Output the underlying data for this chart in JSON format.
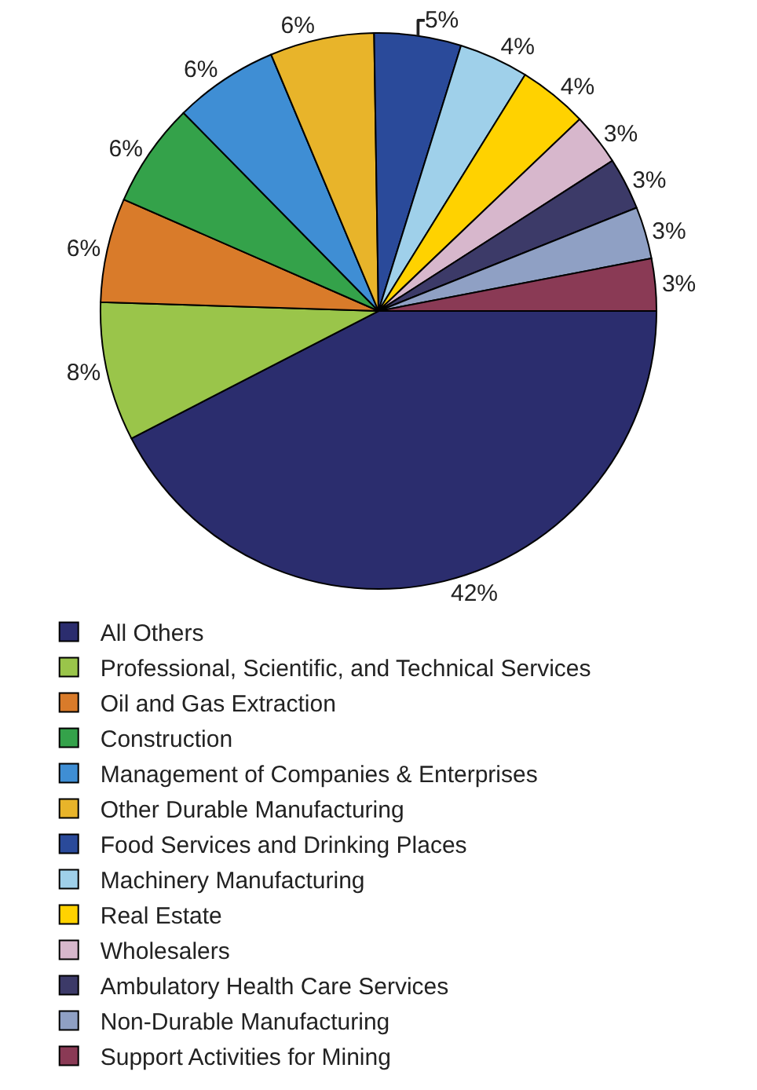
{
  "chart_data": {
    "type": "pie",
    "categories": [
      "All Others",
      "Professional, Scientific, and Technical Services",
      "Oil and Gas Extraction",
      "Construction",
      "Management of Companies & Enterprises",
      "Other Durable Manufacturing",
      "Food Services and Drinking Places",
      "Machinery Manufacturing",
      "Real Estate",
      "Wholesalers",
      "Ambulatory Health Care Services",
      "Non-Durable Manufacturing",
      "Support Activities for Mining"
    ],
    "values": [
      42,
      8,
      6,
      6,
      6,
      6,
      5,
      4,
      4,
      3,
      3,
      3,
      3
    ],
    "value_labels": [
      "42%",
      "8%",
      "6%",
      "6%",
      "6%",
      "6%",
      "5%",
      "4%",
      "4%",
      "3%",
      "3%",
      "3%",
      "3%"
    ],
    "colors": [
      "#2b2d6e",
      "#9ac54a",
      "#d97b2a",
      "#34a24a",
      "#3f8ed4",
      "#e8b42a",
      "#2a4a9a",
      "#9fd0ea",
      "#ffd200",
      "#d7b7cc",
      "#3c3a68",
      "#8fa0c4",
      "#8a3a55"
    ],
    "legend": "bottom"
  }
}
